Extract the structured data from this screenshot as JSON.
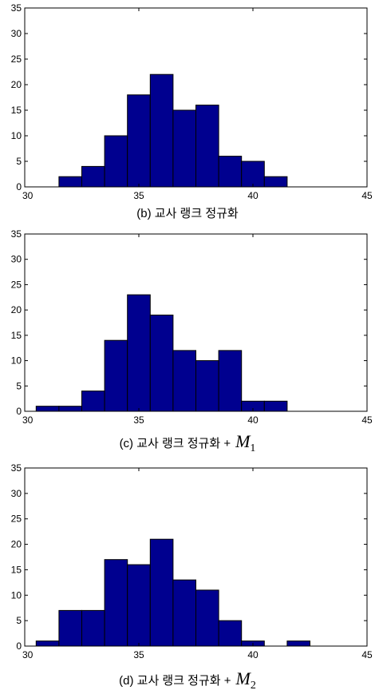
{
  "chart_data": [
    {
      "type": "bar",
      "title": "(b) 교사 랭크 정규화",
      "caption_prefix": "(b) 교사 랭크 정규화",
      "caption_math": "",
      "caption_sub": "",
      "bin_width": 1,
      "bin_starts": [
        31.5,
        32.5,
        33.5,
        34.5,
        35.5,
        36.5,
        37.5,
        38.5,
        39.5,
        40.5
      ],
      "values": [
        2,
        4,
        10,
        18,
        22,
        15,
        16,
        6,
        5,
        2
      ],
      "xlim": [
        30,
        45
      ],
      "ylim": [
        0,
        35
      ],
      "xticks": [
        30,
        35,
        40,
        45
      ],
      "yticks": [
        0,
        5,
        10,
        15,
        20,
        25,
        30,
        35
      ],
      "bar_color": "#00008f",
      "grid": false
    },
    {
      "type": "bar",
      "title": "(c) 교사 랭크 정규화 + M1",
      "caption_prefix": "(c) 교사 랭크 정규화 +",
      "caption_math": "M",
      "caption_sub": "1",
      "bin_width": 1,
      "bin_starts": [
        30.5,
        31.5,
        32.5,
        33.5,
        34.5,
        35.5,
        36.5,
        37.5,
        38.5,
        39.5,
        40.5
      ],
      "values": [
        1,
        1,
        4,
        14,
        23,
        19,
        12,
        10,
        12,
        2,
        2
      ],
      "xlim": [
        30,
        45
      ],
      "ylim": [
        0,
        35
      ],
      "xticks": [
        30,
        35,
        40,
        45
      ],
      "yticks": [
        0,
        5,
        10,
        15,
        20,
        25,
        30,
        35
      ],
      "bar_color": "#00008f",
      "grid": false
    },
    {
      "type": "bar",
      "title": "(d) 교사 랭크 정규화 + M2",
      "caption_prefix": "(d) 교사 랭크 정규화 +",
      "caption_math": "M",
      "caption_sub": "2",
      "bin_width": 1,
      "bin_starts": [
        30.5,
        31.5,
        32.5,
        33.5,
        34.5,
        35.5,
        36.5,
        37.5,
        38.5,
        39.5,
        40.5,
        41.5
      ],
      "values": [
        1,
        7,
        7,
        17,
        16,
        21,
        13,
        11,
        5,
        1,
        0,
        1
      ],
      "xlim": [
        30,
        45
      ],
      "ylim": [
        0,
        35
      ],
      "xticks": [
        30,
        35,
        40,
        45
      ],
      "yticks": [
        0,
        5,
        10,
        15,
        20,
        25,
        30,
        35
      ],
      "bar_color": "#00008f",
      "grid": false
    }
  ]
}
